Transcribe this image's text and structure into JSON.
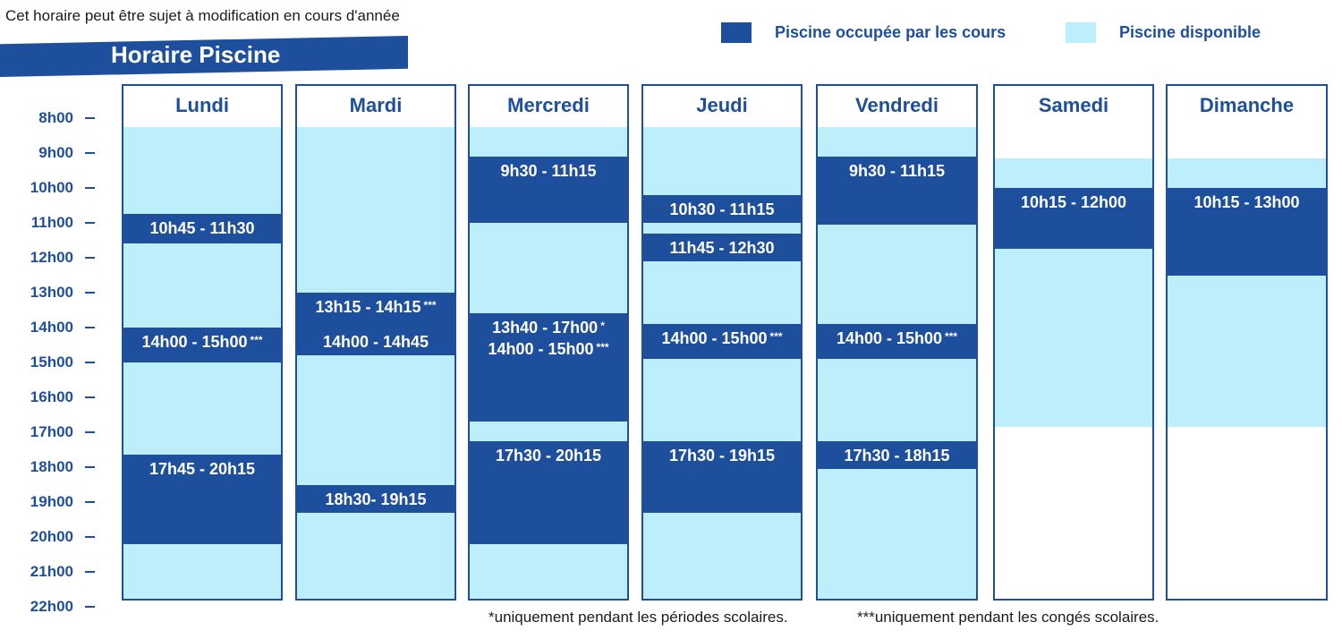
{
  "header": {
    "note": "Cet horaire peut être sujet à modification en cours d'année",
    "title": "Horaire Piscine"
  },
  "legend": {
    "occupied": {
      "label": "Piscine occupée par les cours",
      "color": "#1e4f9c"
    },
    "available": {
      "label": "Piscine disponible",
      "color": "#bdeefc"
    }
  },
  "time_axis": [
    "8h00",
    "9h00",
    "10h00",
    "11h00",
    "12h00",
    "13h00",
    "14h00",
    "15h00",
    "16h00",
    "17h00",
    "18h00",
    "19h00",
    "20h00",
    "21h00",
    "22h00"
  ],
  "days": [
    {
      "name": "Lundi",
      "available": [
        [
          8.25,
          22
        ]
      ],
      "occupied": [
        {
          "from": 10.75,
          "to": 11.6,
          "label": "10h45 - 11h30",
          "mark": ""
        },
        {
          "from": 14.0,
          "to": 15.0,
          "label": "14h00 - 15h00",
          "mark": "***"
        },
        {
          "from": 17.65,
          "to": 20.2,
          "label": "17h45 - 20h15",
          "mark": ""
        }
      ]
    },
    {
      "name": "Mardi",
      "available": [
        [
          8.25,
          22
        ]
      ],
      "occupied": [
        {
          "from": 13.0,
          "to": 14.0,
          "label": "13h15 - 14h15",
          "mark": "***"
        },
        {
          "from": 14.0,
          "to": 14.8,
          "label": "14h00 - 14h45",
          "mark": ""
        },
        {
          "from": 18.5,
          "to": 19.3,
          "label": "18h30- 19h15",
          "mark": ""
        }
      ]
    },
    {
      "name": "Mercredi",
      "available": [
        [
          8.25,
          22
        ]
      ],
      "occupied": [
        {
          "from": 9.1,
          "to": 11.0,
          "label": "9h30 - 11h15",
          "mark": ""
        },
        {
          "from": 13.6,
          "to": 16.7,
          "label": "13h40 - 17h00",
          "mark": "*",
          "label2": "14h00 - 15h00",
          "mark2": "***"
        },
        {
          "from": 17.25,
          "to": 20.2,
          "label": "17h30 - 20h15",
          "mark": ""
        }
      ]
    },
    {
      "name": "Jeudi",
      "available": [
        [
          8.25,
          22
        ]
      ],
      "occupied": [
        {
          "from": 10.2,
          "to": 11.0,
          "label": "10h30 - 11h15",
          "mark": ""
        },
        {
          "from": 11.3,
          "to": 12.1,
          "label": "11h45 - 12h30",
          "mark": ""
        },
        {
          "from": 13.9,
          "to": 14.9,
          "label": "14h00 - 15h00",
          "mark": "***"
        },
        {
          "from": 17.25,
          "to": 19.3,
          "label": "17h30 - 19h15",
          "mark": ""
        }
      ]
    },
    {
      "name": "Vendredi",
      "available": [
        [
          8.25,
          22
        ]
      ],
      "occupied": [
        {
          "from": 9.1,
          "to": 11.05,
          "label": "9h30 - 11h15",
          "mark": ""
        },
        {
          "from": 13.9,
          "to": 14.9,
          "label": "14h00 - 15h00",
          "mark": "***"
        },
        {
          "from": 17.25,
          "to": 18.05,
          "label": "17h30 - 18h15",
          "mark": ""
        }
      ]
    },
    {
      "name": "Samedi",
      "available": [
        [
          9.15,
          16.85
        ]
      ],
      "occupied": [
        {
          "from": 10.0,
          "to": 11.75,
          "label": "10h15 - 12h00",
          "mark": ""
        }
      ]
    },
    {
      "name": "Dimanche",
      "available": [
        [
          9.15,
          16.85
        ]
      ],
      "occupied": [
        {
          "from": 10.0,
          "to": 12.5,
          "label": "10h15 - 13h00",
          "mark": ""
        }
      ]
    }
  ],
  "footnotes": {
    "single": "*uniquement pendant les périodes scolaires.",
    "triple": "***uniquement pendant les congés scolaires."
  }
}
